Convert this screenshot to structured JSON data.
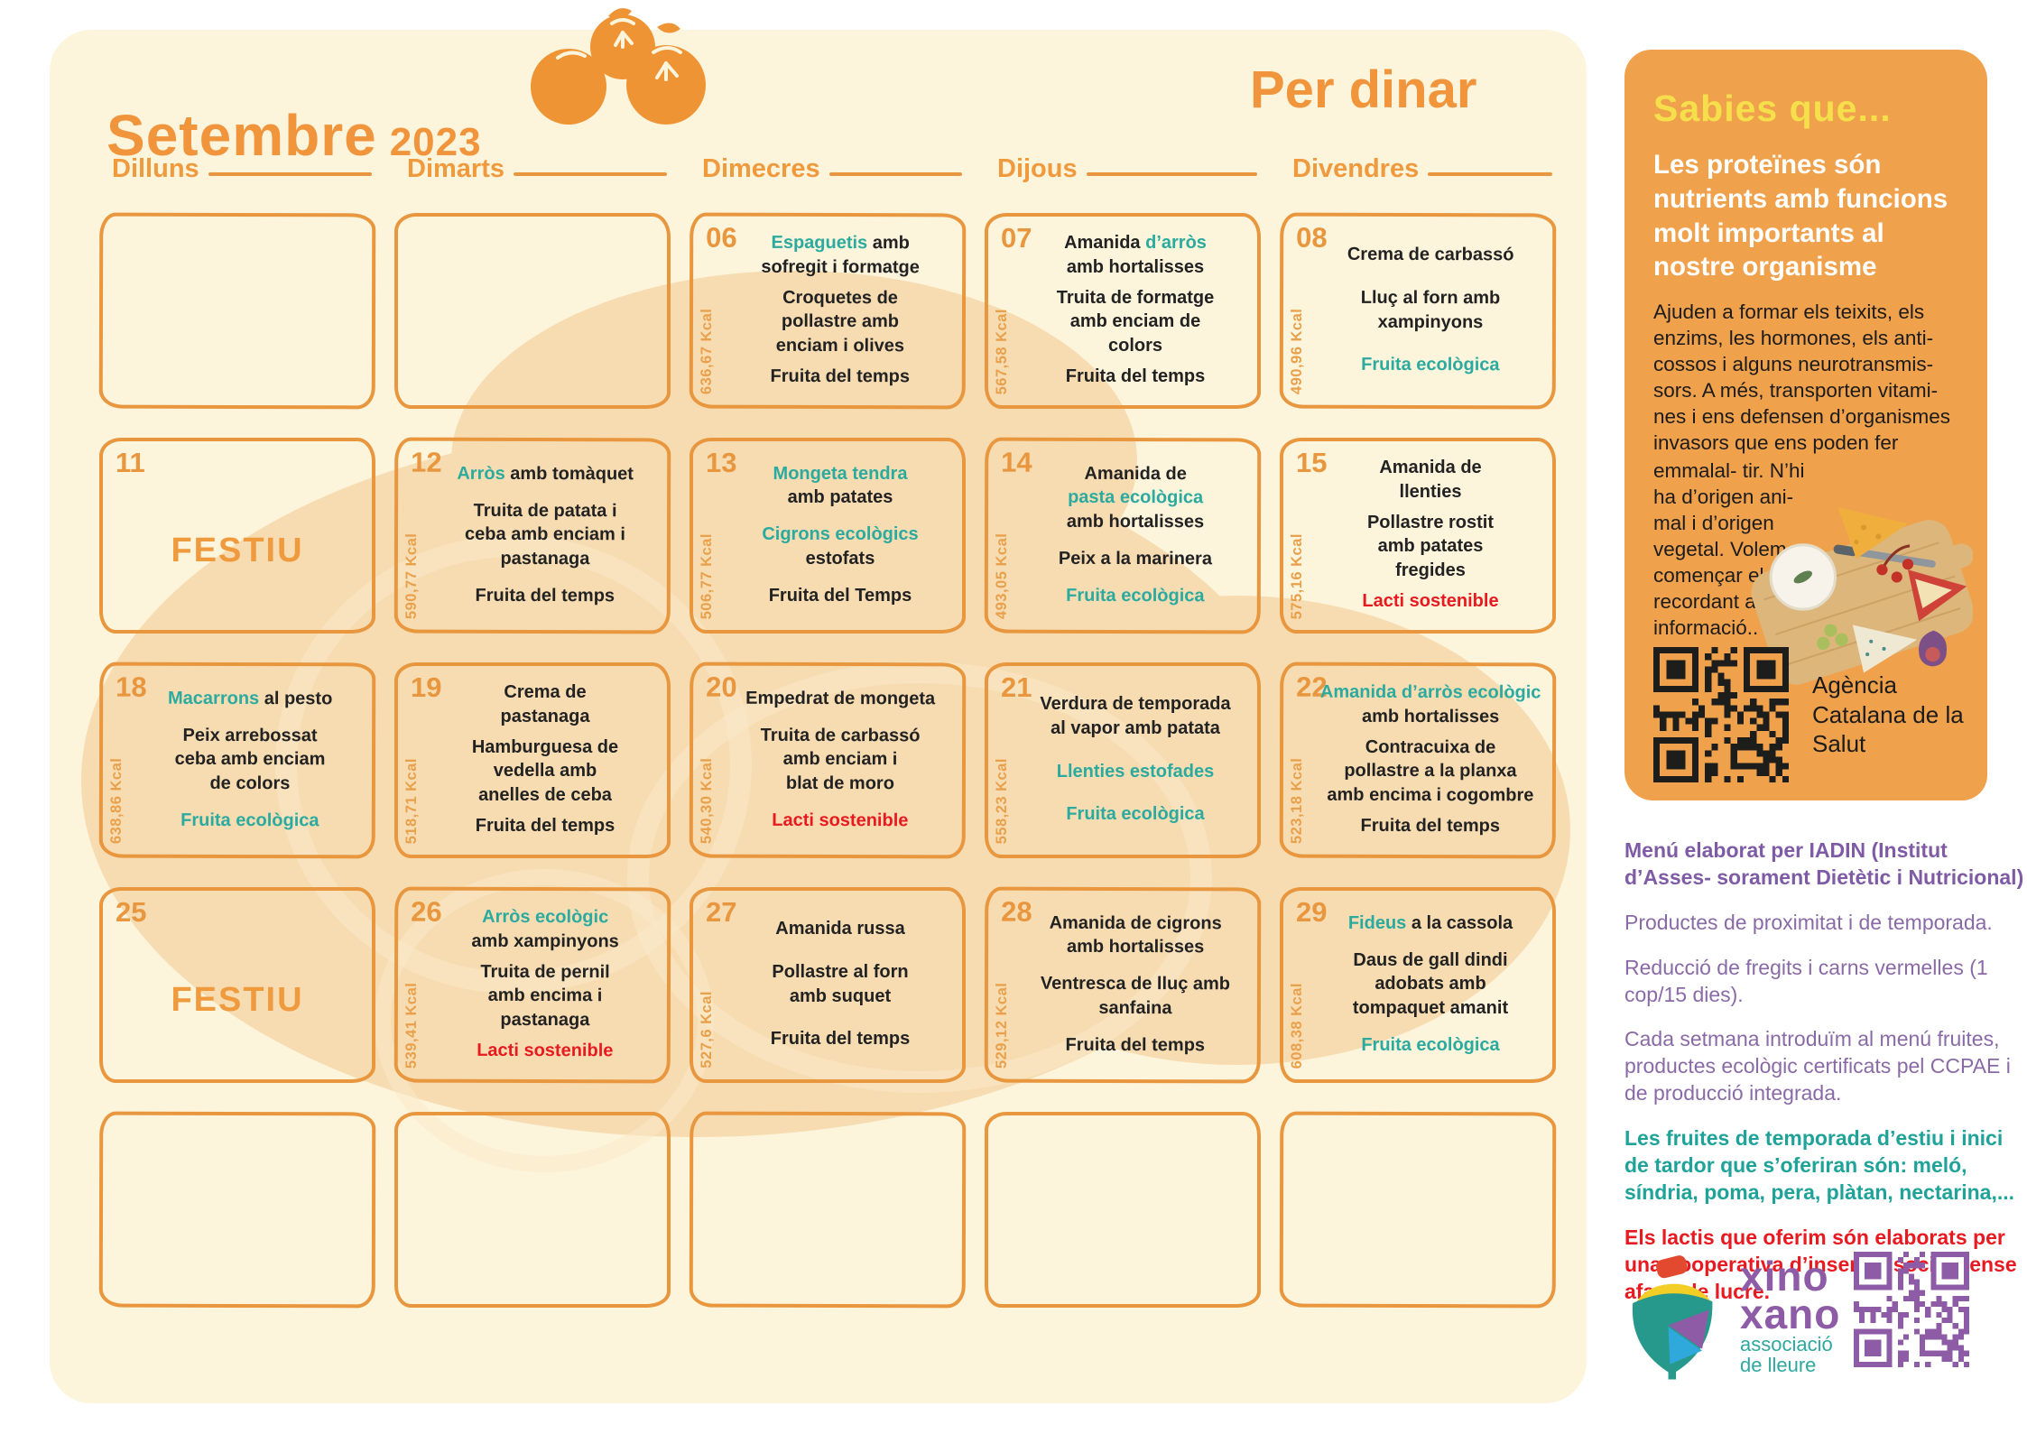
{
  "title": {
    "month": "Setembre",
    "year": "2023",
    "meal": "Per dinar"
  },
  "day_headers": [
    "Dilluns",
    "Dimarts",
    "Dimecres",
    "Dijous",
    "Divendres"
  ],
  "festiu_label": "FESTIU",
  "weeks": [
    [
      null,
      null,
      {
        "day": "06",
        "kcal": "636,67 Kcal",
        "paragraphs": [
          [
            [
              [
                "Espaguetis ",
                "t"
              ],
              [
                "amb",
                "k"
              ]
            ],
            [
              [
                "sofregit  i formatge",
                "k"
              ]
            ]
          ],
          [
            [
              [
                "Croquetes de",
                "k"
              ]
            ],
            [
              [
                "pollastre amb",
                "k"
              ]
            ],
            [
              [
                "enciam i olives",
                "k"
              ]
            ]
          ],
          [
            [
              [
                "Fruita del temps",
                "k"
              ]
            ]
          ]
        ]
      },
      {
        "day": "07",
        "kcal": "567,58 Kcal",
        "paragraphs": [
          [
            [
              [
                "Amanida ",
                "k"
              ],
              [
                "d’arròs",
                "t"
              ]
            ],
            [
              [
                "amb  hortalisses",
                "k"
              ]
            ]
          ],
          [
            [
              [
                "Truita de formatge",
                "k"
              ]
            ],
            [
              [
                "amb   enciam de",
                "k"
              ]
            ],
            [
              [
                "colors",
                "k"
              ]
            ]
          ],
          [
            [
              [
                "Fruita del temps",
                "k"
              ]
            ]
          ]
        ]
      },
      {
        "day": "08",
        "kcal": "490,96 Kcal",
        "paragraphs": [
          [
            [
              [
                "Crema de carbassó",
                "k"
              ]
            ]
          ],
          [
            [
              [
                "Lluç al forn amb",
                "k"
              ]
            ],
            [
              [
                "xampinyons",
                "k"
              ]
            ]
          ],
          [
            [
              [
                "Fruita ecològica",
                "t"
              ]
            ]
          ]
        ]
      }
    ],
    [
      {
        "day": "11",
        "kcal": "",
        "festiu": true
      },
      {
        "day": "12",
        "kcal": "590,77 Kcal",
        "paragraphs": [
          [
            [
              [
                "Arròs ",
                "t"
              ],
              [
                "amb tomàquet",
                "k"
              ]
            ]
          ],
          [
            [
              [
                "Truita de patata i",
                "k"
              ]
            ],
            [
              [
                "ceba amb enciam i",
                "k"
              ]
            ],
            [
              [
                "pastanaga",
                "k"
              ]
            ]
          ],
          [
            [
              [
                "Fruita del temps",
                "k"
              ]
            ]
          ]
        ]
      },
      {
        "day": "13",
        "kcal": "506,77 Kcal",
        "paragraphs": [
          [
            [
              [
                "Mongeta tendra",
                "t"
              ]
            ],
            [
              [
                "amb patates",
                "k"
              ]
            ]
          ],
          [
            [
              [
                "Cigrons  ecològics",
                "t"
              ]
            ],
            [
              [
                "estofats",
                "k"
              ]
            ]
          ],
          [
            [
              [
                "Fruita del Temps",
                "k"
              ]
            ]
          ]
        ]
      },
      {
        "day": "14",
        "kcal": "493,05 Kcal",
        "paragraphs": [
          [
            [
              [
                "Amanida  de",
                "k"
              ]
            ],
            [
              [
                "pasta ecològica",
                "t"
              ]
            ],
            [
              [
                "amb hortalisses",
                "k"
              ]
            ]
          ],
          [
            [
              [
                "Peix a la marinera",
                "k"
              ]
            ]
          ],
          [
            [
              [
                "Fruita ecològica",
                "t"
              ]
            ]
          ]
        ]
      },
      {
        "day": "15",
        "kcal": "575,16 Kcal",
        "paragraphs": [
          [
            [
              [
                "Amanida de",
                "k"
              ]
            ],
            [
              [
                "llenties",
                "k"
              ]
            ]
          ],
          [
            [
              [
                "Pollastre rostit",
                "k"
              ]
            ],
            [
              [
                "amb patates",
                "k"
              ]
            ],
            [
              [
                "fregides",
                "k"
              ]
            ]
          ],
          [
            [
              [
                "Lacti sostenible",
                "r"
              ]
            ]
          ]
        ]
      }
    ],
    [
      {
        "day": "18",
        "kcal": "638,86 Kcal",
        "paragraphs": [
          [
            [
              [
                "Macarrons ",
                "t"
              ],
              [
                "al pesto",
                "k"
              ]
            ]
          ],
          [
            [
              [
                "Peix arrebossat",
                "k"
              ]
            ],
            [
              [
                "ceba amb enciam",
                "k"
              ]
            ],
            [
              [
                "de colors",
                "k"
              ]
            ]
          ],
          [
            [
              [
                "Fruita ecològica",
                "t"
              ]
            ]
          ]
        ]
      },
      {
        "day": "19",
        "kcal": "518,71 Kcal",
        "paragraphs": [
          [
            [
              [
                "Crema de",
                "k"
              ]
            ],
            [
              [
                "pastanaga",
                "k"
              ]
            ]
          ],
          [
            [
              [
                "Hamburguesa de",
                "k"
              ]
            ],
            [
              [
                "vedella amb",
                "k"
              ]
            ],
            [
              [
                "anelles   de ceba",
                "k"
              ]
            ]
          ],
          [
            [
              [
                "Fruita del temps",
                "k"
              ]
            ]
          ]
        ]
      },
      {
        "day": "20",
        "kcal": "540,30 Kcal",
        "paragraphs": [
          [
            [
              [
                "Empedrat de mongeta",
                "k"
              ]
            ]
          ],
          [
            [
              [
                "Truita de carbassó",
                "k"
              ]
            ],
            [
              [
                "amb enciam i",
                "k"
              ]
            ],
            [
              [
                "blat  de moro",
                "k"
              ]
            ]
          ],
          [
            [
              [
                "Lacti sostenible",
                "r"
              ]
            ]
          ]
        ]
      },
      {
        "day": "21",
        "kcal": "558,23 Kcal",
        "paragraphs": [
          [
            [
              [
                "Verdura de temporada",
                "k"
              ]
            ],
            [
              [
                "al vapor amb patata",
                "k"
              ]
            ]
          ],
          [
            [
              [
                "Llenties estofades",
                "t"
              ]
            ]
          ],
          [
            [
              [
                "Fruita ecològica",
                "t"
              ]
            ]
          ]
        ]
      },
      {
        "day": "22",
        "kcal": "523,18 Kcal",
        "paragraphs": [
          [
            [
              [
                "Amanida d’arròs ecològic",
                "t"
              ]
            ],
            [
              [
                "amb hortalisses",
                "k"
              ]
            ]
          ],
          [
            [
              [
                "Contracuixa de",
                "k"
              ]
            ],
            [
              [
                "pollastre a la planxa",
                "k"
              ]
            ],
            [
              [
                "amb encima i cogombre",
                "k"
              ]
            ]
          ],
          [
            [
              [
                "Fruita del temps",
                "k"
              ]
            ]
          ]
        ]
      }
    ],
    [
      {
        "day": "25",
        "kcal": "",
        "festiu": true
      },
      {
        "day": "26",
        "kcal": "539,41 Kcal",
        "paragraphs": [
          [
            [
              [
                "Arròs ecològic",
                "t"
              ]
            ],
            [
              [
                "amb   xampinyons",
                "k"
              ]
            ]
          ],
          [
            [
              [
                "Truita de pernil",
                "k"
              ]
            ],
            [
              [
                "amb encima i",
                "k"
              ]
            ],
            [
              [
                "pastanaga",
                "k"
              ]
            ]
          ],
          [
            [
              [
                "Lacti sostenible",
                "r"
              ]
            ]
          ]
        ]
      },
      {
        "day": "27",
        "kcal": "527,6 Kcal",
        "paragraphs": [
          [
            [
              [
                "Amanida russa",
                "k"
              ]
            ]
          ],
          [
            [
              [
                "Pollastre al forn",
                "k"
              ]
            ],
            [
              [
                "amb suquet",
                "k"
              ]
            ]
          ],
          [
            [
              [
                "Fruita del temps",
                "k"
              ]
            ]
          ]
        ]
      },
      {
        "day": "28",
        "kcal": "529,12 Kcal",
        "paragraphs": [
          [
            [
              [
                "Amanida de cigrons",
                "k"
              ]
            ],
            [
              [
                "amb hortalisses",
                "k"
              ]
            ]
          ],
          [
            [
              [
                "Ventresca de lluç amb",
                "k"
              ]
            ],
            [
              [
                "sanfaina",
                "k"
              ]
            ]
          ],
          [
            [
              [
                "Fruita del temps",
                "k"
              ]
            ]
          ]
        ]
      },
      {
        "day": "29",
        "kcal": "608,38 Kcal",
        "paragraphs": [
          [
            [
              [
                "Fideus ",
                "t"
              ],
              [
                "a la cassola",
                "k"
              ]
            ]
          ],
          [
            [
              [
                "Daus de gall dindi",
                "k"
              ]
            ],
            [
              [
                "adobats amb",
                "k"
              ]
            ],
            [
              [
                "tompaquet amanit",
                "k"
              ]
            ]
          ],
          [
            [
              [
                "Fruita ecològica",
                "t"
              ]
            ]
          ]
        ]
      }
    ],
    [
      null,
      null,
      null,
      null,
      null
    ]
  ],
  "sidebar": {
    "title": "Sabies  que...",
    "heading": "Les proteïnes són nutrients amb funcions molt importants al nostre organisme",
    "body1": "Ajuden a formar els teixits, els enzims, les hormones, els anti- cossos i alguns neurotransmis- sors. A més, transporten vitami- nes i ens defensen d’organismes invasors que ens poden fer",
    "body2": "emmalal- tir.  N’hi ha d’origen ani- mal i d’origen vegetal. Volem començar el curs recordant aquesta informació..",
    "agency": "Agència Catalana de la Salut"
  },
  "notes": {
    "author": "Menú elaborat per IADIN (Institut d’Asses- sorament Dietètic i Nutricional)",
    "proximity": "Productes de proximitat i de temporada.",
    "reduction": "Reducció de fregits i carns vermelles (1 cop/15 dies).",
    "weekly": "Cada setmana introduïm al menú fruites, productes ecològic certificats pel CCPAE i de producció integrada.",
    "fruits": "Les fruites de temporada d’estiu i inici de tardor que s’oferiran són: meló, síndria, poma, pera, plàtan, nectarina,...",
    "dairy": "Els lactis que oferim són elaborats per una cooperativa d’inserció social sense afany de lucre."
  },
  "footer": {
    "brand_line1": "xino",
    "brand_line2": "xano",
    "tagline1": "associació",
    "tagline2": "de lleure"
  },
  "colors": {
    "accent_orange": "#F0953C",
    "border_orange": "#E8973F",
    "sidebar_orange": "#F0A14C",
    "yellow": "#F5E04B",
    "cream": "#FDF4DC",
    "peach": "#F7DCB2",
    "teal": "#2BAA9F",
    "red": "#E8191F",
    "purple": "#8A6AA6",
    "logo_purple": "#8E5BA6",
    "black": "#222222"
  }
}
